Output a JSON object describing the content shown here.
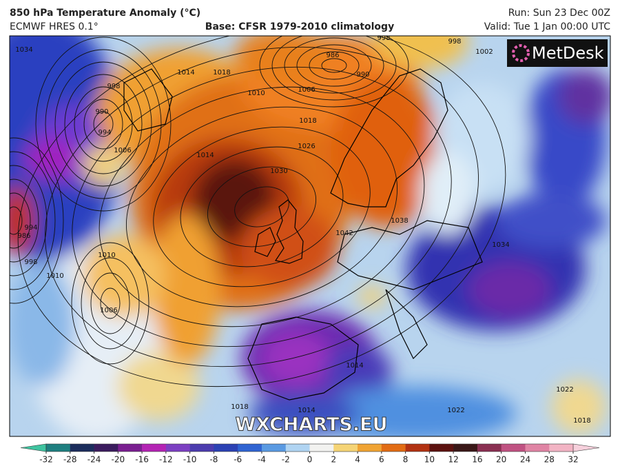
{
  "header": {
    "title": "850 hPa Temperature Anomaly (°C)",
    "model": "ECMWF HRES 0.1°",
    "base": "Base: CFSR 1979-2010 climatology",
    "run": "Run: Sun 23 Dec 00Z",
    "valid": "Valid: Tue 1 Jan 00:00 UTC"
  },
  "logo": "MetDesk",
  "watermark": "WXCHARTS.EU",
  "isobar_labels": [
    1034,
    998,
    990,
    994,
    1006,
    1010,
    1006,
    986,
    990,
    998,
    998,
    1002,
    1018,
    1026,
    1030,
    1042,
    1038,
    1034,
    1014,
    1018,
    1010,
    1006,
    1010,
    994,
    986,
    998,
    1014,
    1014,
    1022,
    1022,
    1018,
    1018,
    1014
  ],
  "colorbar": {
    "ticks": [
      -32,
      -28,
      -24,
      -20,
      -16,
      -12,
      -10,
      -8,
      -6,
      -4,
      -2,
      0,
      2,
      4,
      6,
      8,
      10,
      12,
      16,
      20,
      24,
      28,
      32
    ],
    "under_color": "#3fc4a0",
    "colors": [
      "#1f7f80",
      "#1c2d5c",
      "#3b1c5e",
      "#7a1f90",
      "#b424b4",
      "#7c40c2",
      "#4c3cae",
      "#2c42b4",
      "#3064d2",
      "#5a9ae2",
      "#b0d4f2",
      "#f2f2f0",
      "#f5d476",
      "#f0a434",
      "#e26c14",
      "#b23212",
      "#5c1210",
      "#3a1818",
      "#8a3052",
      "#c05282",
      "#e084a4",
      "#f2b4c4"
    ],
    "over_color": "#f6d0dc"
  }
}
